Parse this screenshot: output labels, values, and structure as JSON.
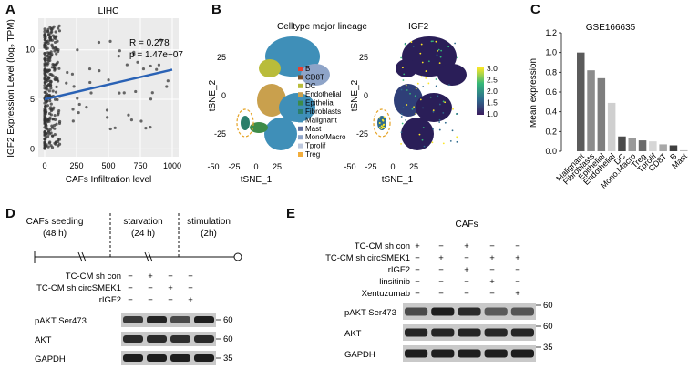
{
  "panels": {
    "A": {
      "letter": "A",
      "title": "LIHC",
      "stats": {
        "r": "R = 0.278",
        "p": "p = 1.47e−07"
      },
      "xlabel": "CAFs Infiltration level",
      "ylabel_main": "IGF2 Expression Level (log",
      "ylabel_sub": "2",
      "ylabel_end": " TPM)",
      "xticks": [
        "0",
        "250",
        "500",
        "750",
        "1000"
      ],
      "yticks": [
        "0",
        "5",
        "10"
      ]
    },
    "B": {
      "letter": "B",
      "left_title": "Celltype major lineage",
      "right_title": "IGF2",
      "xlabel": "tSNE_1",
      "ylabel": "tSNE_2",
      "xticks": [
        "-50",
        "-25",
        "0",
        "25"
      ],
      "yticks": [
        "25",
        "0",
        "-25"
      ],
      "legend": [
        {
          "name": "B",
          "color": "#e63f2e"
        },
        {
          "name": "CD8T",
          "color": "#7a4e2a"
        },
        {
          "name": "DC",
          "color": "#b9bc3a"
        },
        {
          "name": "Endothelial",
          "color": "#c9a04d"
        },
        {
          "name": "Epithelial",
          "color": "#3e8b48"
        },
        {
          "name": "Fibroblasts",
          "color": "#2b7e6b"
        },
        {
          "name": "Malignant",
          "color": "#3f8fb8"
        },
        {
          "name": "Mast",
          "color": "#5e6f9f"
        },
        {
          "name": "Mono/Macro",
          "color": "#8ea4c8"
        },
        {
          "name": "Tprolif",
          "color": "#bcc7dd"
        },
        {
          "name": "Treg",
          "color": "#f2ad3c"
        }
      ],
      "colorbar_ticks": [
        "3.0",
        "2.5",
        "2.0",
        "1.5",
        "1.0"
      ]
    },
    "C": {
      "letter": "C",
      "title": "GSE166635",
      "ylabel": "Mean expression",
      "yticks": [
        "0.0",
        "0.2",
        "0.4",
        "0.6",
        "0.8",
        "1.0",
        "1.2"
      ]
    },
    "D": {
      "letter": "D",
      "timeline": {
        "seg1": "CAFs seeding",
        "seg1_dur": "(48 h)",
        "seg2": "starvation",
        "seg2_dur": "(24 h)",
        "seg3": "stimulation",
        "seg3_dur": "(2h)"
      },
      "rows": [
        {
          "label": "TC-CM sh con",
          "signs": [
            "−",
            "+",
            "−",
            "−"
          ]
        },
        {
          "label": "TC-CM sh circSMEK1",
          "signs": [
            "−",
            "−",
            "+",
            "−"
          ]
        },
        {
          "label": "rIGF2",
          "signs": [
            "−",
            "−",
            "−",
            "+"
          ]
        }
      ],
      "blots": [
        {
          "label": "pAKT Ser473",
          "mw": "60"
        },
        {
          "label": "AKT",
          "mw": "60"
        },
        {
          "label": "GAPDH",
          "mw": "35"
        }
      ]
    },
    "E": {
      "letter": "E",
      "header": "CAFs",
      "rows": [
        {
          "label": "TC-CM sh con",
          "signs": [
            "+",
            "−",
            "+",
            "−",
            "−"
          ]
        },
        {
          "label": "TC-CM sh circSMEK1",
          "signs": [
            "−",
            "+",
            "−",
            "+",
            "+"
          ]
        },
        {
          "label": "rIGF2",
          "signs": [
            "−",
            "−",
            "+",
            "−",
            "−"
          ]
        },
        {
          "label": "linsitinib",
          "signs": [
            "−",
            "−",
            "−",
            "+",
            "−"
          ]
        },
        {
          "label": "Xentuzumab",
          "signs": [
            "−",
            "−",
            "−",
            "−",
            "+"
          ]
        }
      ],
      "blots": [
        {
          "label": "pAKT Ser473",
          "mw": "60"
        },
        {
          "label": "AKT",
          "mw": "60"
        },
        {
          "label": "GAPDH",
          "mw": "35"
        }
      ]
    }
  },
  "chart_data": [
    {
      "type": "scatter",
      "title": "LIHC",
      "xlabel": "CAFs Infiltration level",
      "ylabel": "IGF2 Expression Level (log2 TPM)",
      "xlim": [
        -50,
        1050
      ],
      "ylim": [
        -0.8,
        13.2
      ],
      "regression": {
        "x": [
          0,
          1000
        ],
        "y": [
          5.0,
          8.0
        ],
        "color": "#2a62b5"
      },
      "r_text": "R = 0.278",
      "p_text": "p = 1.47e−07"
    },
    {
      "type": "bar",
      "title": "GSE166635",
      "ylabel": "Mean expression",
      "ylim": [
        0,
        1.2
      ],
      "categories": [
        "Malignant",
        "Fibroblasts",
        "Epithelial",
        "Endothelial",
        "DC",
        "Mono.Macro",
        "Treg",
        "Tprolif",
        "CD8T",
        "B",
        "Mast"
      ],
      "values": [
        1.0,
        0.82,
        0.74,
        0.49,
        0.15,
        0.13,
        0.11,
        0.1,
        0.07,
        0.06,
        0.01
      ],
      "colors": [
        "#5b5b5b",
        "#8c8c8c",
        "#7e7e7e",
        "#cfcfcf",
        "#4a4a4a",
        "#9a9a9a",
        "#6a6a6a",
        "#d6d6d6",
        "#a8a8a8",
        "#404040",
        "#b8b8b8"
      ]
    }
  ]
}
